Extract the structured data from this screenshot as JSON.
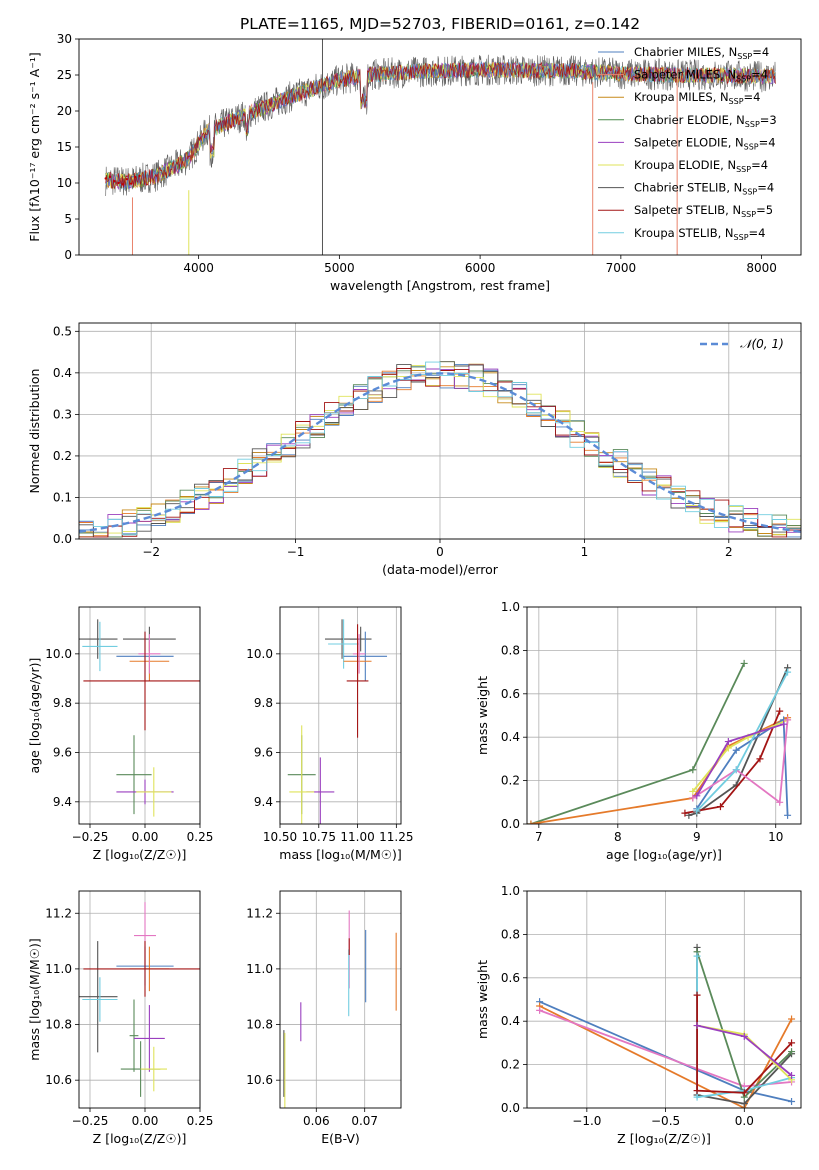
{
  "figure_title": "PLATE=1165, MJD=52703, FIBERID=0161, z=0.142",
  "colors": {
    "chabrier_miles": "#4f7fbf",
    "salpeter_miles": "#e9836b",
    "kroupa_miles": "#c78a1a",
    "chabrier_elodie": "#4a8a4a",
    "salpeter_elodie": "#9a3fbf",
    "kroupa_elodie": "#dfe35a",
    "chabrier_stelib": "#555555",
    "salpeter_stelib": "#a31515",
    "kroupa_stelib": "#72cde0",
    "gaussian": "#5b8bd6",
    "orange": "#e57a2a",
    "pink": "#e377c2",
    "green": "#5a8a5a",
    "grid": "#b0b0b0"
  },
  "chart_data": [
    {
      "id": "spectrum",
      "type": "line",
      "title": "PLATE=1165, MJD=52703, FIBERID=0161, z=0.142",
      "xlabel": "wavelength [Angstrom, rest frame]",
      "ylabel": "Flux [fλ10⁻¹⁷ erg cm⁻² s⁻¹ A⁻¹]",
      "xlim": [
        3150,
        8280
      ],
      "ylim": [
        0,
        30
      ],
      "xticks": [
        4000,
        5000,
        6000,
        7000,
        8000
      ],
      "yticks": [
        0,
        5,
        10,
        15,
        20,
        25,
        30
      ],
      "grid": false,
      "legend_position": "top-right",
      "legend": [
        {
          "base": "Chabrier MILES, N",
          "sub": "SSP",
          "tail": "=4"
        },
        {
          "base": "Salpeter MILES, N",
          "sub": "SSP",
          "tail": "=4"
        },
        {
          "base": "Kroupa MILES, N",
          "sub": "SSP",
          "tail": "=4"
        },
        {
          "base": "Chabrier ELODIE, N",
          "sub": "SSP",
          "tail": "=3"
        },
        {
          "base": "Salpeter ELODIE, N",
          "sub": "SSP",
          "tail": "=4"
        },
        {
          "base": "Kroupa ELODIE, N",
          "sub": "SSP",
          "tail": "=4"
        },
        {
          "base": "Chabrier STELIB, N",
          "sub": "SSP",
          "tail": "=4"
        },
        {
          "base": "Salpeter STELIB, N",
          "sub": "SSP",
          "tail": "=5"
        },
        {
          "base": "Kroupa STELIB, N",
          "sub": "SSP",
          "tail": "=4"
        }
      ],
      "continuum": {
        "x": [
          3340,
          3500,
          3600,
          3700,
          3800,
          3900,
          3950,
          4050,
          4200,
          4400,
          4600,
          4800,
          5000,
          5200,
          5400,
          5600,
          5800,
          6000,
          6200,
          6400,
          6600,
          6800,
          7000,
          7200,
          7400,
          7600,
          7800,
          8000,
          8100
        ],
        "y": [
          10.4,
          10.2,
          10.6,
          11.0,
          12.0,
          13.0,
          14.0,
          17.0,
          18.4,
          20.0,
          21.6,
          23.0,
          24.3,
          25.0,
          25.3,
          25.5,
          25.6,
          25.7,
          25.7,
          25.6,
          25.6,
          25.4,
          25.2,
          25.1,
          25.0,
          25.0,
          24.9,
          24.8,
          24.8
        ]
      }
    },
    {
      "id": "residuals",
      "type": "area",
      "xlabel": "(data-model)/error",
      "ylabel": "Normed distribution",
      "xlim": [
        -2.5,
        2.5
      ],
      "ylim": [
        0,
        0.52
      ],
      "xticks": [
        -2,
        -1,
        0,
        1,
        2
      ],
      "yticks": [
        0.0,
        0.1,
        0.2,
        0.3,
        0.4,
        0.5
      ],
      "grid": true,
      "legend_position": "top-right",
      "legend": [
        "𝒩(0, 1)"
      ],
      "gaussian": {
        "mean": 0,
        "sigma": 1
      }
    },
    {
      "id": "z_age",
      "type": "scatter",
      "xlabel": "Z [log₁₀(Z/Z☉)]",
      "ylabel": "age  [log₁₀(age/yr)]",
      "xlim": [
        -0.3,
        0.25
      ],
      "ylim": [
        9.31,
        10.19
      ],
      "xticks": [
        -0.25,
        0.0,
        0.25
      ],
      "yticks": [
        9.4,
        9.6,
        9.8,
        10.0
      ],
      "grid": true,
      "points": [
        {
          "x": -0.215,
          "y": 10.06,
          "xerr": 0.09,
          "yerr": 0.08,
          "c": "chabrier_stelib"
        },
        {
          "x": -0.205,
          "y": 10.03,
          "xerr": 0.08,
          "yerr": 0.1,
          "c": "kroupa_stelib"
        },
        {
          "x": 0.02,
          "y": 10.06,
          "xerr": 0.12,
          "yerr": 0.05,
          "c": "chabrier_stelib"
        },
        {
          "x": 0.0,
          "y": 9.99,
          "xerr": 0.13,
          "yerr": 0.1,
          "c": "chabrier_miles"
        },
        {
          "x": 0.02,
          "y": 9.97,
          "xerr": 0.09,
          "yerr": 0.08,
          "c": "orange"
        },
        {
          "x": 0.02,
          "y": 10.0,
          "xerr": 0.05,
          "yerr": 0.08,
          "c": "pink"
        },
        {
          "x": 0.0,
          "y": 9.89,
          "xerr": 0.28,
          "yerr": 0.2,
          "c": "salpeter_stelib"
        },
        {
          "x": -0.05,
          "y": 9.51,
          "xerr": 0.08,
          "yerr": 0.16,
          "c": "green"
        },
        {
          "x": 0.0,
          "y": 9.44,
          "xerr": 0.13,
          "yerr": 0.05,
          "c": "salpeter_elodie"
        },
        {
          "x": 0.04,
          "y": 9.44,
          "xerr": 0.08,
          "yerr": 0.1,
          "c": "kroupa_elodie"
        }
      ]
    },
    {
      "id": "mass_age",
      "type": "scatter",
      "xlabel": "mass [log₁₀(M/M☉)]",
      "ylabel": "",
      "xlim": [
        10.5,
        11.28
      ],
      "ylim": [
        9.31,
        10.19
      ],
      "xticks": [
        10.5,
        10.75,
        11.0,
        11.25
      ],
      "yticks": [
        9.4,
        9.6,
        9.8,
        10.0
      ],
      "grid": true,
      "points": [
        {
          "x": 10.9,
          "y": 10.06,
          "xerr": 0.11,
          "yerr": 0.08,
          "c": "chabrier_stelib"
        },
        {
          "x": 10.91,
          "y": 10.04,
          "xerr": 0.1,
          "yerr": 0.1,
          "c": "kroupa_stelib"
        },
        {
          "x": 11.02,
          "y": 10.06,
          "xerr": 0.07,
          "yerr": 0.05,
          "c": "chabrier_stelib"
        },
        {
          "x": 11.05,
          "y": 9.99,
          "xerr": 0.14,
          "yerr": 0.1,
          "c": "chabrier_miles"
        },
        {
          "x": 11.0,
          "y": 9.97,
          "xerr": 0.09,
          "yerr": 0.08,
          "c": "orange"
        },
        {
          "x": 11.01,
          "y": 10.0,
          "xerr": 0.04,
          "yerr": 0.08,
          "c": "pink"
        },
        {
          "x": 11.0,
          "y": 9.89,
          "xerr": 0.07,
          "yerr": 0.23,
          "c": "salpeter_stelib"
        },
        {
          "x": 10.64,
          "y": 9.51,
          "xerr": 0.09,
          "yerr": 0.16,
          "c": "green"
        },
        {
          "x": 10.76,
          "y": 9.44,
          "xerr": 0.09,
          "yerr": 0.14,
          "c": "salpeter_elodie"
        },
        {
          "x": 10.64,
          "y": 9.44,
          "xerr": 0.08,
          "yerr": 0.27,
          "c": "kroupa_elodie"
        }
      ]
    },
    {
      "id": "age_weight",
      "type": "line",
      "xlabel": "age  [log₁₀(age/yr)]",
      "ylabel": "mass weight",
      "xlim": [
        6.85,
        10.32
      ],
      "ylim": [
        0,
        1.0
      ],
      "xticks": [
        7,
        8,
        9,
        10
      ],
      "yticks": [
        0.0,
        0.2,
        0.4,
        0.6,
        0.8,
        1.0
      ],
      "grid": true,
      "series": [
        {
          "c": "green",
          "x": [
            6.9,
            8.95,
            9.6
          ],
          "y": [
            0.0,
            0.25,
            0.74
          ]
        },
        {
          "c": "orange",
          "x": [
            6.9,
            8.95,
            9.4,
            10.15
          ],
          "y": [
            0.0,
            0.12,
            0.36,
            0.49
          ]
        },
        {
          "c": "chabrier_stelib",
          "x": [
            8.9,
            9.0,
            9.5,
            10.15
          ],
          "y": [
            0.04,
            0.05,
            0.18,
            0.72
          ]
        },
        {
          "c": "salpeter_stelib",
          "x": [
            8.85,
            9.3,
            9.8,
            10.05
          ],
          "y": [
            0.05,
            0.08,
            0.3,
            0.52
          ]
        },
        {
          "c": "chabrier_miles",
          "x": [
            9.0,
            9.5,
            10.1,
            10.15
          ],
          "y": [
            0.07,
            0.34,
            0.48,
            0.04
          ]
        },
        {
          "c": "kroupa_elodie",
          "x": [
            8.95,
            9.4,
            9.65,
            10.15
          ],
          "y": [
            0.15,
            0.35,
            0.4,
            0.48
          ]
        },
        {
          "c": "pink",
          "x": [
            8.95,
            9.5,
            10.05,
            10.15
          ],
          "y": [
            0.12,
            0.25,
            0.1,
            0.48
          ]
        },
        {
          "c": "kroupa_stelib",
          "x": [
            9.0,
            9.5,
            10.15
          ],
          "y": [
            0.06,
            0.25,
            0.7
          ]
        },
        {
          "c": "salpeter_elodie",
          "x": [
            9.0,
            9.4,
            10.1
          ],
          "y": [
            0.13,
            0.38,
            0.46
          ]
        }
      ]
    },
    {
      "id": "z_mass",
      "type": "scatter",
      "xlabel": "Z [log₁₀(Z/Z☉)]",
      "ylabel": "mass [log₁₀(M/M☉)]",
      "xlim": [
        -0.3,
        0.25
      ],
      "ylim": [
        10.5,
        11.28
      ],
      "xticks": [
        -0.25,
        0.0,
        0.25
      ],
      "yticks": [
        10.6,
        10.8,
        11.0,
        11.2
      ],
      "grid": true,
      "points": [
        {
          "x": -0.215,
          "y": 10.9,
          "xerr": 0.09,
          "yerr": 0.2,
          "c": "chabrier_stelib"
        },
        {
          "x": -0.205,
          "y": 10.89,
          "xerr": 0.08,
          "yerr": 0.08,
          "c": "kroupa_stelib"
        },
        {
          "x": 0.0,
          "y": 11.12,
          "xerr": 0.05,
          "yerr": 0.12,
          "c": "pink"
        },
        {
          "x": 0.0,
          "y": 11.01,
          "xerr": 0.13,
          "yerr": 0.07,
          "c": "chabrier_miles"
        },
        {
          "x": 0.02,
          "y": 11.0,
          "xerr": 0.09,
          "yerr": 0.08,
          "c": "orange"
        },
        {
          "x": 0.0,
          "y": 11.0,
          "xerr": 0.28,
          "yerr": 0.1,
          "c": "salpeter_stelib"
        },
        {
          "x": -0.05,
          "y": 10.76,
          "xerr": 0.02,
          "yerr": 0.13,
          "c": "green"
        },
        {
          "x": 0.02,
          "y": 10.75,
          "xerr": 0.07,
          "yerr": 0.12,
          "c": "salpeter_elodie"
        },
        {
          "x": -0.02,
          "y": 10.64,
          "xerr": 0.09,
          "yerr": 0.1,
          "c": "green"
        },
        {
          "x": 0.04,
          "y": 10.64,
          "xerr": 0.06,
          "yerr": 0.08,
          "c": "kroupa_elodie"
        }
      ]
    },
    {
      "id": "ebv_mass",
      "type": "scatter",
      "xlabel": "E(B-V)",
      "ylabel": "",
      "xlim": [
        0.0525,
        0.0775
      ],
      "ylim": [
        10.5,
        11.28
      ],
      "xticks": [
        0.06,
        0.07
      ],
      "yticks": [
        10.6,
        10.8,
        11.0,
        11.2
      ],
      "grid": true,
      "points": [
        {
          "x": 0.0533,
          "y": 10.66,
          "xerr": 0,
          "yerr": 0.12,
          "c": "chabrier_stelib"
        },
        {
          "x": 0.0535,
          "y": 10.63,
          "xerr": 0,
          "yerr": 0.14,
          "c": "kroupa_elodie"
        },
        {
          "x": 0.0568,
          "y": 10.81,
          "xerr": 0,
          "yerr": 0.07,
          "c": "salpeter_elodie"
        },
        {
          "x": 0.0668,
          "y": 11.07,
          "xerr": 0,
          "yerr": 0.14,
          "c": "pink"
        },
        {
          "x": 0.0667,
          "y": 10.95,
          "xerr": 0,
          "yerr": 0.12,
          "c": "kroupa_stelib"
        },
        {
          "x": 0.0668,
          "y": 11.08,
          "xerr": 0,
          "yerr": 0.03,
          "c": "salpeter_stelib"
        },
        {
          "x": 0.0702,
          "y": 11.01,
          "xerr": 0,
          "yerr": 0.13,
          "c": "chabrier_miles"
        },
        {
          "x": 0.0765,
          "y": 10.99,
          "xerr": 0,
          "yerr": 0.14,
          "c": "orange"
        }
      ]
    },
    {
      "id": "z_weight",
      "type": "line",
      "xlabel": "Z [log₁₀(Z/Z☉)]",
      "ylabel": "mass weight",
      "xlim": [
        -1.38,
        0.36
      ],
      "ylim": [
        0,
        1.0
      ],
      "xticks": [
        -1.0,
        -0.5,
        0.0
      ],
      "yticks": [
        0.0,
        0.2,
        0.4,
        0.6,
        0.8,
        1.0
      ],
      "grid": true,
      "series": [
        {
          "c": "chabrier_miles",
          "x": [
            -1.3,
            0.0,
            0.3
          ],
          "y": [
            0.49,
            0.08,
            0.03
          ]
        },
        {
          "c": "orange",
          "x": [
            -1.3,
            0.0,
            0.3
          ],
          "y": [
            0.47,
            0.0,
            0.41
          ]
        },
        {
          "c": "pink",
          "x": [
            -1.3,
            0.0,
            0.3
          ],
          "y": [
            0.45,
            0.1,
            0.12
          ]
        },
        {
          "c": "chabrier_stelib",
          "x": [
            -0.3,
            -0.3,
            0.0,
            0.3
          ],
          "y": [
            0.74,
            0.06,
            0.02,
            0.25
          ]
        },
        {
          "c": "green",
          "x": [
            -0.3,
            0.0,
            0.3
          ],
          "y": [
            0.72,
            0.05,
            0.26
          ]
        },
        {
          "c": "kroupa_stelib",
          "x": [
            -0.3,
            -0.3,
            0.0,
            0.3
          ],
          "y": [
            0.7,
            0.05,
            0.08,
            0.14
          ]
        },
        {
          "c": "salpeter_stelib",
          "x": [
            -0.3,
            -0.3,
            0.0,
            0.3
          ],
          "y": [
            0.52,
            0.08,
            0.07,
            0.3
          ]
        },
        {
          "c": "kroupa_elodie",
          "x": [
            -0.3,
            0.0,
            0.3
          ],
          "y": [
            0.38,
            0.34,
            0.13
          ]
        },
        {
          "c": "salpeter_elodie",
          "x": [
            -0.3,
            0.0,
            0.3
          ],
          "y": [
            0.38,
            0.33,
            0.15
          ]
        }
      ]
    }
  ]
}
